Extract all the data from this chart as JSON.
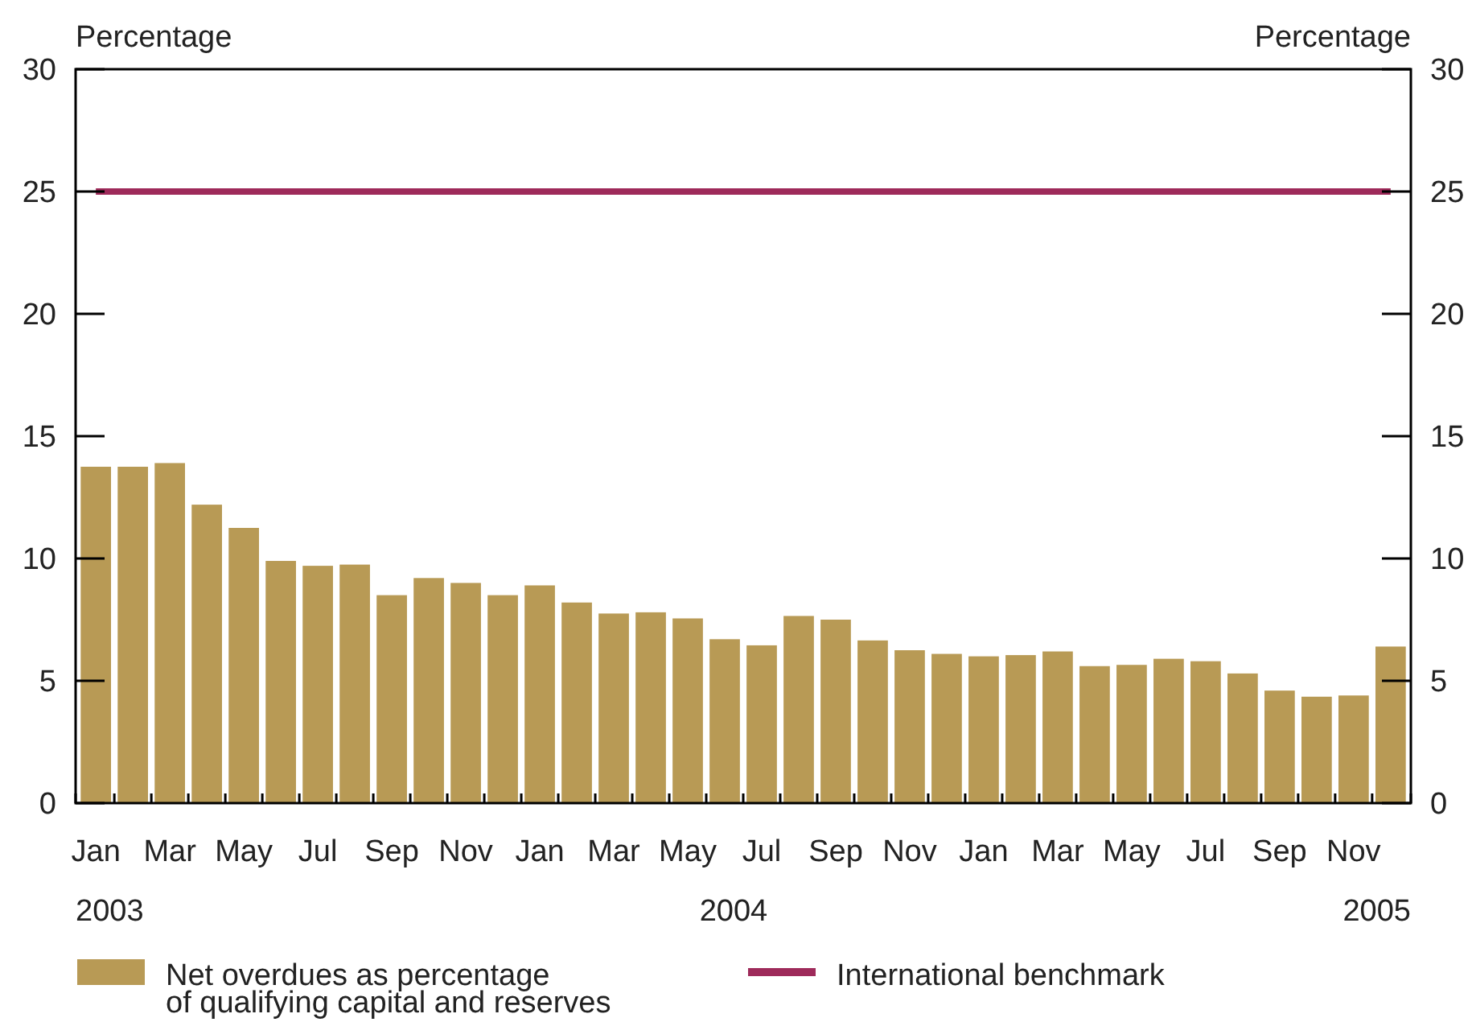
{
  "chart_data": {
    "type": "bar",
    "categories": [
      "Jan",
      null,
      "Mar",
      null,
      "May",
      null,
      "Jul",
      null,
      "Sep",
      null,
      "Nov",
      null,
      "Jan",
      null,
      "Mar",
      null,
      "May",
      null,
      "Jul",
      null,
      "Sep",
      null,
      "Nov",
      null,
      "Jan",
      null,
      "Mar",
      null,
      "May",
      null,
      "Jul",
      null,
      "Sep",
      null,
      "Nov",
      null
    ],
    "series": [
      {
        "name": "Net overdues as percentage of qualifying capital and reserves",
        "color": "#b89a55",
        "values": [
          13.75,
          13.75,
          13.9,
          12.2,
          11.25,
          9.9,
          9.7,
          9.75,
          8.5,
          9.2,
          9.0,
          8.5,
          8.9,
          8.2,
          7.75,
          7.8,
          7.55,
          6.7,
          6.45,
          7.65,
          7.5,
          6.65,
          6.25,
          6.1,
          6.0,
          6.05,
          6.2,
          5.6,
          5.65,
          5.9,
          5.8,
          5.3,
          4.6,
          4.35,
          4.4,
          6.4
        ]
      },
      {
        "name": "International benchmark",
        "type": "line",
        "color": "#9e2a5a",
        "values": [
          25,
          25,
          25,
          25,
          25,
          25,
          25,
          25,
          25,
          25,
          25,
          25,
          25,
          25,
          25,
          25,
          25,
          25,
          25,
          25,
          25,
          25,
          25,
          25,
          25,
          25,
          25,
          25,
          25,
          25,
          25,
          25,
          25,
          25,
          25,
          25
        ]
      }
    ],
    "ylabel": "Percentage",
    "y2label": "Percentage",
    "ylim": [
      0,
      30
    ],
    "yticks": [
      0,
      5,
      10,
      15,
      20,
      25,
      30
    ],
    "y2lim": [
      0,
      30
    ],
    "y2ticks": [
      0,
      5,
      10,
      15,
      20,
      25,
      30
    ],
    "annotations": [
      "2003",
      "2004",
      "2005"
    ],
    "legend": "bottom",
    "grid": false
  }
}
